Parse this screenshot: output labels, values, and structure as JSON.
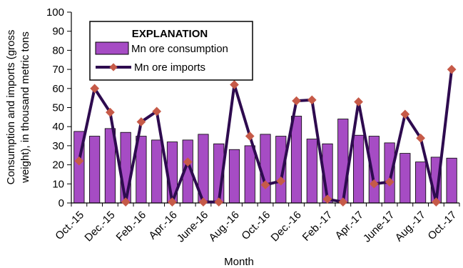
{
  "chart_data": {
    "type": "bar+line",
    "ylabel_line1": "Consumption and imports (gross",
    "ylabel_line2": "weight), in thousand metric tons",
    "xlabel": "Month",
    "ylim": [
      0,
      100
    ],
    "yticks": [
      0,
      10,
      20,
      30,
      40,
      50,
      60,
      70,
      80,
      90,
      100
    ],
    "categories": [
      "Oct.-15",
      "Nov.-15",
      "Dec.-15",
      "Jan.-16",
      "Feb.-16",
      "Mar.-16",
      "Apr.-16",
      "May-16",
      "June-16",
      "July-16",
      "Aug.-16",
      "Sep.-16",
      "Oct.-16",
      "Nov.-16",
      "Dec.-16",
      "Jan.-17",
      "Feb.-17",
      "Mar.-17",
      "Apr.-17",
      "May-17",
      "June-17",
      "July-17",
      "Aug.-17",
      "Sep.-17",
      "Oct.-17"
    ],
    "tick_labels": [
      "Oct.-15",
      "",
      "Dec.-15",
      "",
      "Feb.-16",
      "",
      "Apr.-16",
      "",
      "June-16",
      "",
      "Aug.-16",
      "",
      "Oct.-16",
      "",
      "Dec.-16",
      "",
      "Feb.-17",
      "",
      "Apr.-17",
      "",
      "June-17",
      "",
      "Aug.-17",
      "",
      "Oct.-17"
    ],
    "legend_title": "EXPLANATION",
    "legend_placement": "top-left",
    "grid": false,
    "series": [
      {
        "name": "Mn ore consumption",
        "kind": "bar",
        "color": "#A64CC4",
        "values": [
          37.5,
          35,
          39,
          37,
          35,
          33,
          32,
          33,
          36,
          31,
          28,
          30,
          36,
          35,
          45.5,
          33.5,
          31,
          44,
          35.5,
          35,
          31.5,
          26,
          21.5,
          24,
          23.5
        ]
      },
      {
        "name": "Mn ore imports",
        "kind": "line",
        "color": "#2E0B4F",
        "marker_color": "#C65A48",
        "values": [
          22,
          60,
          47.5,
          0.5,
          42.5,
          48,
          0.5,
          21.5,
          0.5,
          0.5,
          62,
          35,
          9.5,
          11.5,
          53.5,
          54,
          2,
          0.5,
          53,
          10,
          11,
          46.5,
          34,
          0.5,
          70
        ]
      }
    ]
  }
}
